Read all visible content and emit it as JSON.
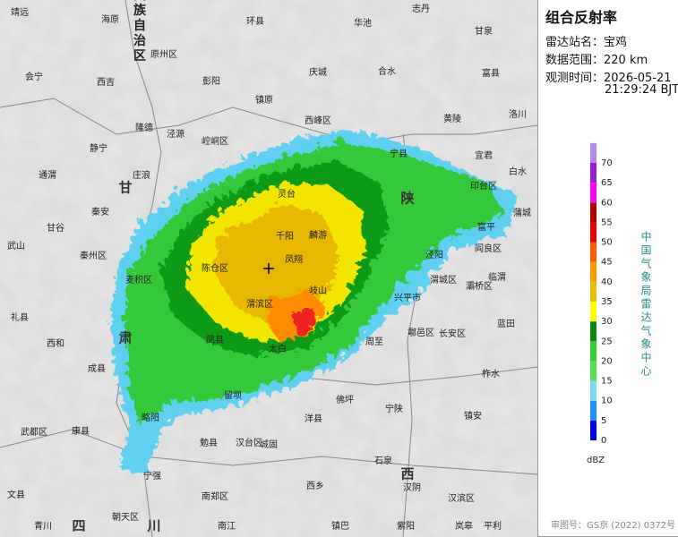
{
  "panel": {
    "title": "组合反射率",
    "station_label": "雷达站名：",
    "station": "宝鸡",
    "range_label": "数据范围：",
    "range": "220 km",
    "time_label": "观测时间：",
    "date": "2026-05-21",
    "time": "21:29:24 BJT"
  },
  "legend": {
    "unit": "dBZ",
    "ticks": [
      0,
      5,
      10,
      15,
      20,
      25,
      30,
      35,
      40,
      45,
      50,
      55,
      60,
      65,
      70
    ],
    "colors": [
      "#0000f6",
      "#1e90ff",
      "#7fdcf0",
      "#55e055",
      "#2ed12e",
      "#0c8a0c",
      "#ffff00",
      "#e8c000",
      "#ff9900",
      "#ff5a00",
      "#e60000",
      "#b00000",
      "#ff00ff",
      "#9a1ad4",
      "#b48ae8"
    ]
  },
  "credit": "中国气象局雷达气象中心",
  "review_number": "审图号：GS京 (2022) 0372号",
  "map_labels": [
    "靖远",
    "海原",
    "宁夏回族自治区",
    "环县",
    "华池",
    "志丹",
    "甘泉",
    "原州区",
    "西吉",
    "会宁",
    "彭阳",
    "镇原",
    "庆城",
    "合水",
    "富县",
    "隆德",
    "泾源",
    "崆峒区",
    "西峰区",
    "黄陵",
    "洛川",
    "静宁",
    "庄浪",
    "宁县",
    "宜君",
    "白水",
    "通渭",
    "秦安",
    "灵台",
    "甘谷",
    "麟游",
    "印台区",
    "蒲城",
    "富平",
    "武山",
    "千阳",
    "凤翔",
    "陈仓区",
    "泾阳",
    "阎良区",
    "临渭",
    "秦州区",
    "麦积区",
    "岐山",
    "渭城区",
    "兴平市",
    "灞桥区",
    "礼县",
    "渭滨区",
    "周至",
    "鄠邑区",
    "长安区",
    "蓝田",
    "西和",
    "凤县",
    "太白",
    "柞水",
    "成县",
    "留坝",
    "佛坪",
    "宁陕",
    "镇安",
    "武都区",
    "康县",
    "略阳",
    "洋县",
    "勉县",
    "汉台区",
    "城固",
    "石泉",
    "汉阴",
    "汉滨区",
    "宁强",
    "南郑区",
    "西乡",
    "文县",
    "青川",
    "朝天区",
    "南江",
    "镇巴",
    "紫阳",
    "岚皋",
    "平利",
    "甘",
    "肃",
    "陕",
    "西",
    "四",
    "川"
  ]
}
